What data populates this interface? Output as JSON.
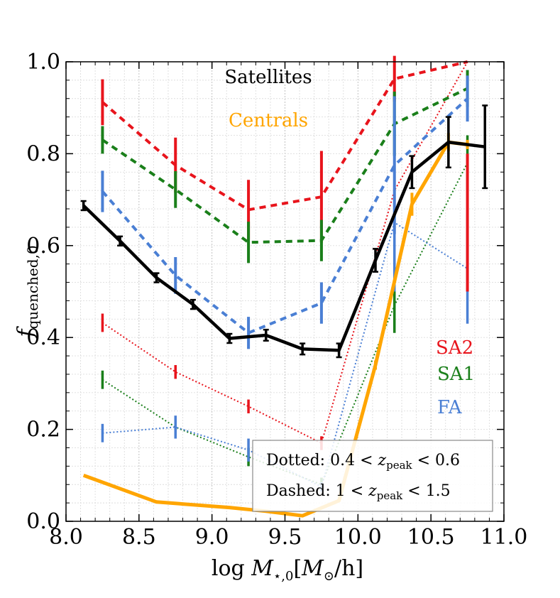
{
  "chart_data": {
    "type": "line",
    "title": "",
    "xlabel": "log M⋆,0[M⊙/h]",
    "xlabel_parts": {
      "pre": "log ",
      "M": "M",
      "sub": "⋆,0",
      "br_open": "[",
      "Msun": "M",
      "sun_sub": "⊙",
      "slash": "/h]"
    },
    "ylabel": "f quenched,0",
    "ylabel_parts": {
      "f": "f",
      "sub": "quenched,0"
    },
    "xlim": [
      8.0,
      11.0
    ],
    "ylim": [
      0.0,
      1.0
    ],
    "xticks": [
      "8.0",
      "8.5",
      "9.0",
      "9.5",
      "10.0",
      "10.5",
      "11.0"
    ],
    "yticks": [
      "0.0",
      "0.2",
      "0.4",
      "0.6",
      "0.8",
      "1.0"
    ],
    "grid": true,
    "annotations": [
      {
        "text": "Satellites",
        "color": "#000000"
      },
      {
        "text": "Centrals",
        "color": "#ffa500"
      },
      {
        "text": "SA2",
        "color": "#e8141c"
      },
      {
        "text": "SA1",
        "color": "#1a7f1a"
      },
      {
        "text": "FA",
        "color": "#4a7fd4"
      }
    ],
    "legend": {
      "position": "bottom-right",
      "dotted": {
        "label": "Dotted: ",
        "lo": "0.4",
        "lt1": " < ",
        "z": "z",
        "zsub": "peak",
        "lt2": " < ",
        "hi": "0.6"
      },
      "dashed": {
        "label": "Dashed: ",
        "lo": "1",
        "lt1": " < ",
        "z": "z",
        "zsub": "peak",
        "lt2": " < ",
        "hi": "1.5"
      }
    },
    "series": [
      {
        "name": "Satellites",
        "color": "#000000",
        "style": "solid",
        "x": [
          8.12,
          8.37,
          8.62,
          8.87,
          9.12,
          9.37,
          9.62,
          9.87,
          10.12,
          10.37,
          10.62,
          10.87
        ],
        "y": [
          0.687,
          0.61,
          0.53,
          0.472,
          0.398,
          0.405,
          0.375,
          0.372,
          0.568,
          0.76,
          0.825,
          0.815
        ],
        "err": [
          0.01,
          0.01,
          0.01,
          0.01,
          0.01,
          0.012,
          0.012,
          0.015,
          0.025,
          0.035,
          0.055,
          0.09
        ]
      },
      {
        "name": "Centrals",
        "color": "#ffa500",
        "style": "solid",
        "x": [
          8.12,
          8.62,
          9.12,
          9.37,
          9.62,
          9.87,
          10.12,
          10.37,
          10.62,
          10.75
        ],
        "y": [
          0.1,
          0.042,
          0.03,
          0.022,
          0.012,
          0.045,
          0.34,
          0.69,
          0.825,
          0.82
        ],
        "err": [
          0,
          0,
          0,
          0,
          0,
          0,
          0.01,
          0.025,
          0.02,
          0.01
        ]
      },
      {
        "name": "SA2 dashed",
        "color": "#e8141c",
        "style": "dashed",
        "x": [
          8.25,
          8.75,
          9.25,
          9.75,
          10.25,
          10.75
        ],
        "y": [
          0.912,
          0.775,
          0.678,
          0.706,
          0.963,
          1.0
        ],
        "err": [
          0.05,
          0.06,
          0.065,
          0.1,
          0.05,
          0.0
        ]
      },
      {
        "name": "SA1 dashed",
        "color": "#1a7f1a",
        "style": "dashed",
        "x": [
          8.25,
          8.75,
          9.25,
          9.75,
          10.25,
          10.75
        ],
        "y": [
          0.83,
          0.722,
          0.607,
          0.611,
          0.865,
          0.942
        ],
        "err": [
          0.03,
          0.04,
          0.045,
          0.045,
          0.07,
          0.04
        ]
      },
      {
        "name": "FA dashed",
        "color": "#4a7fd4",
        "style": "dashed",
        "x": [
          8.25,
          8.75,
          9.25,
          9.75,
          10.25,
          10.75
        ],
        "y": [
          0.718,
          0.535,
          0.41,
          0.475,
          0.775,
          0.92
        ],
        "err": [
          0.045,
          0.04,
          0.035,
          0.045,
          0.15,
          0.05
        ]
      },
      {
        "name": "SA2 dotted",
        "color": "#e8141c",
        "style": "dotted",
        "x": [
          8.25,
          8.75,
          9.25,
          9.75,
          10.25,
          10.75
        ],
        "y": [
          0.432,
          0.325,
          0.25,
          0.17,
          0.72,
          1.0
        ],
        "err": [
          0.02,
          0.015,
          0.015,
          0.015,
          0.2,
          0.0
        ]
      },
      {
        "name": "SA1 dotted",
        "color": "#1a7f1a",
        "style": "dotted",
        "x": [
          8.25,
          8.75,
          9.25,
          9.75,
          10.25,
          10.75
        ],
        "y": [
          0.308,
          0.205,
          0.14,
          0.08,
          0.47,
          0.78
        ],
        "err": [
          0.02,
          0.02,
          0.02,
          0.015,
          0.06,
          0.06
        ]
      },
      {
        "name": "FA dotted",
        "color": "#4a7fd4",
        "style": "dotted",
        "x": [
          8.25,
          8.75,
          9.25,
          9.75,
          10.25,
          10.75
        ],
        "y": [
          0.192,
          0.205,
          0.155,
          0.075,
          0.65,
          0.55
        ],
        "err": [
          0.02,
          0.025,
          0.025,
          0.01,
          0.15,
          0.12
        ]
      },
      {
        "name": "SA2 extra error",
        "color": "#e8141c",
        "style": "none",
        "x": [
          10.75
        ],
        "y": [
          0.65
        ],
        "err": [
          0.15
        ]
      }
    ]
  }
}
